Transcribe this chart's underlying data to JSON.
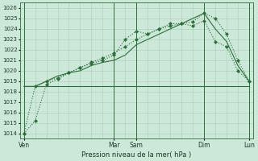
{
  "xlabel": "Pression niveau de la mer( hPa )",
  "bg_color": "#cce8d8",
  "grid_color": "#aaccb8",
  "line_color": "#2d6e3e",
  "ylim": [
    1013.5,
    1026.5
  ],
  "yticks": [
    1014,
    1015,
    1016,
    1017,
    1018,
    1019,
    1020,
    1021,
    1022,
    1023,
    1024,
    1025,
    1026
  ],
  "day_x": [
    0,
    48,
    60,
    96,
    120
  ],
  "day_labels": [
    "Ven",
    "Mar",
    "Sam",
    "Dim",
    "Lun"
  ],
  "series1_x": [
    0,
    6,
    12,
    18,
    24,
    30,
    36,
    42,
    48,
    54,
    60,
    66,
    72,
    78,
    84,
    90,
    96,
    102,
    108,
    114,
    120
  ],
  "series1_y": [
    1014.0,
    1015.2,
    1018.7,
    1019.2,
    1019.8,
    1020.3,
    1020.8,
    1021.2,
    1021.7,
    1022.3,
    1023.0,
    1023.5,
    1024.0,
    1024.3,
    1024.5,
    1024.7,
    1025.5,
    1025.0,
    1023.5,
    1021.0,
    1019.0
  ],
  "series2_x": [
    0,
    6,
    12,
    18,
    24,
    30,
    36,
    42,
    48,
    54,
    60,
    66,
    72,
    78,
    84,
    90,
    96,
    102,
    108,
    114,
    120
  ],
  "series2_y": [
    1014.0,
    1018.5,
    1019.0,
    1019.3,
    1019.8,
    1020.3,
    1020.7,
    1021.0,
    1021.5,
    1023.0,
    1023.8,
    1023.5,
    1024.0,
    1024.5,
    1024.5,
    1024.3,
    1024.8,
    1022.8,
    1022.3,
    1020.0,
    1019.0
  ],
  "series3_x": [
    0,
    6,
    12,
    18,
    24,
    30,
    36,
    42,
    48,
    54,
    60,
    66,
    72,
    78,
    84,
    90,
    96,
    102,
    108,
    114,
    120
  ],
  "series3_y": [
    1018.5,
    1018.5,
    1019.0,
    1019.5,
    1019.8,
    1020.0,
    1020.5,
    1020.8,
    1021.0,
    1021.5,
    1022.5,
    1023.0,
    1023.5,
    1024.0,
    1024.5,
    1025.0,
    1025.5,
    1024.0,
    1022.8,
    1020.5,
    1019.0
  ],
  "series4_x": [
    0,
    120
  ],
  "series4_y": [
    1018.5,
    1018.5
  ],
  "xlim": [
    -2,
    122
  ]
}
